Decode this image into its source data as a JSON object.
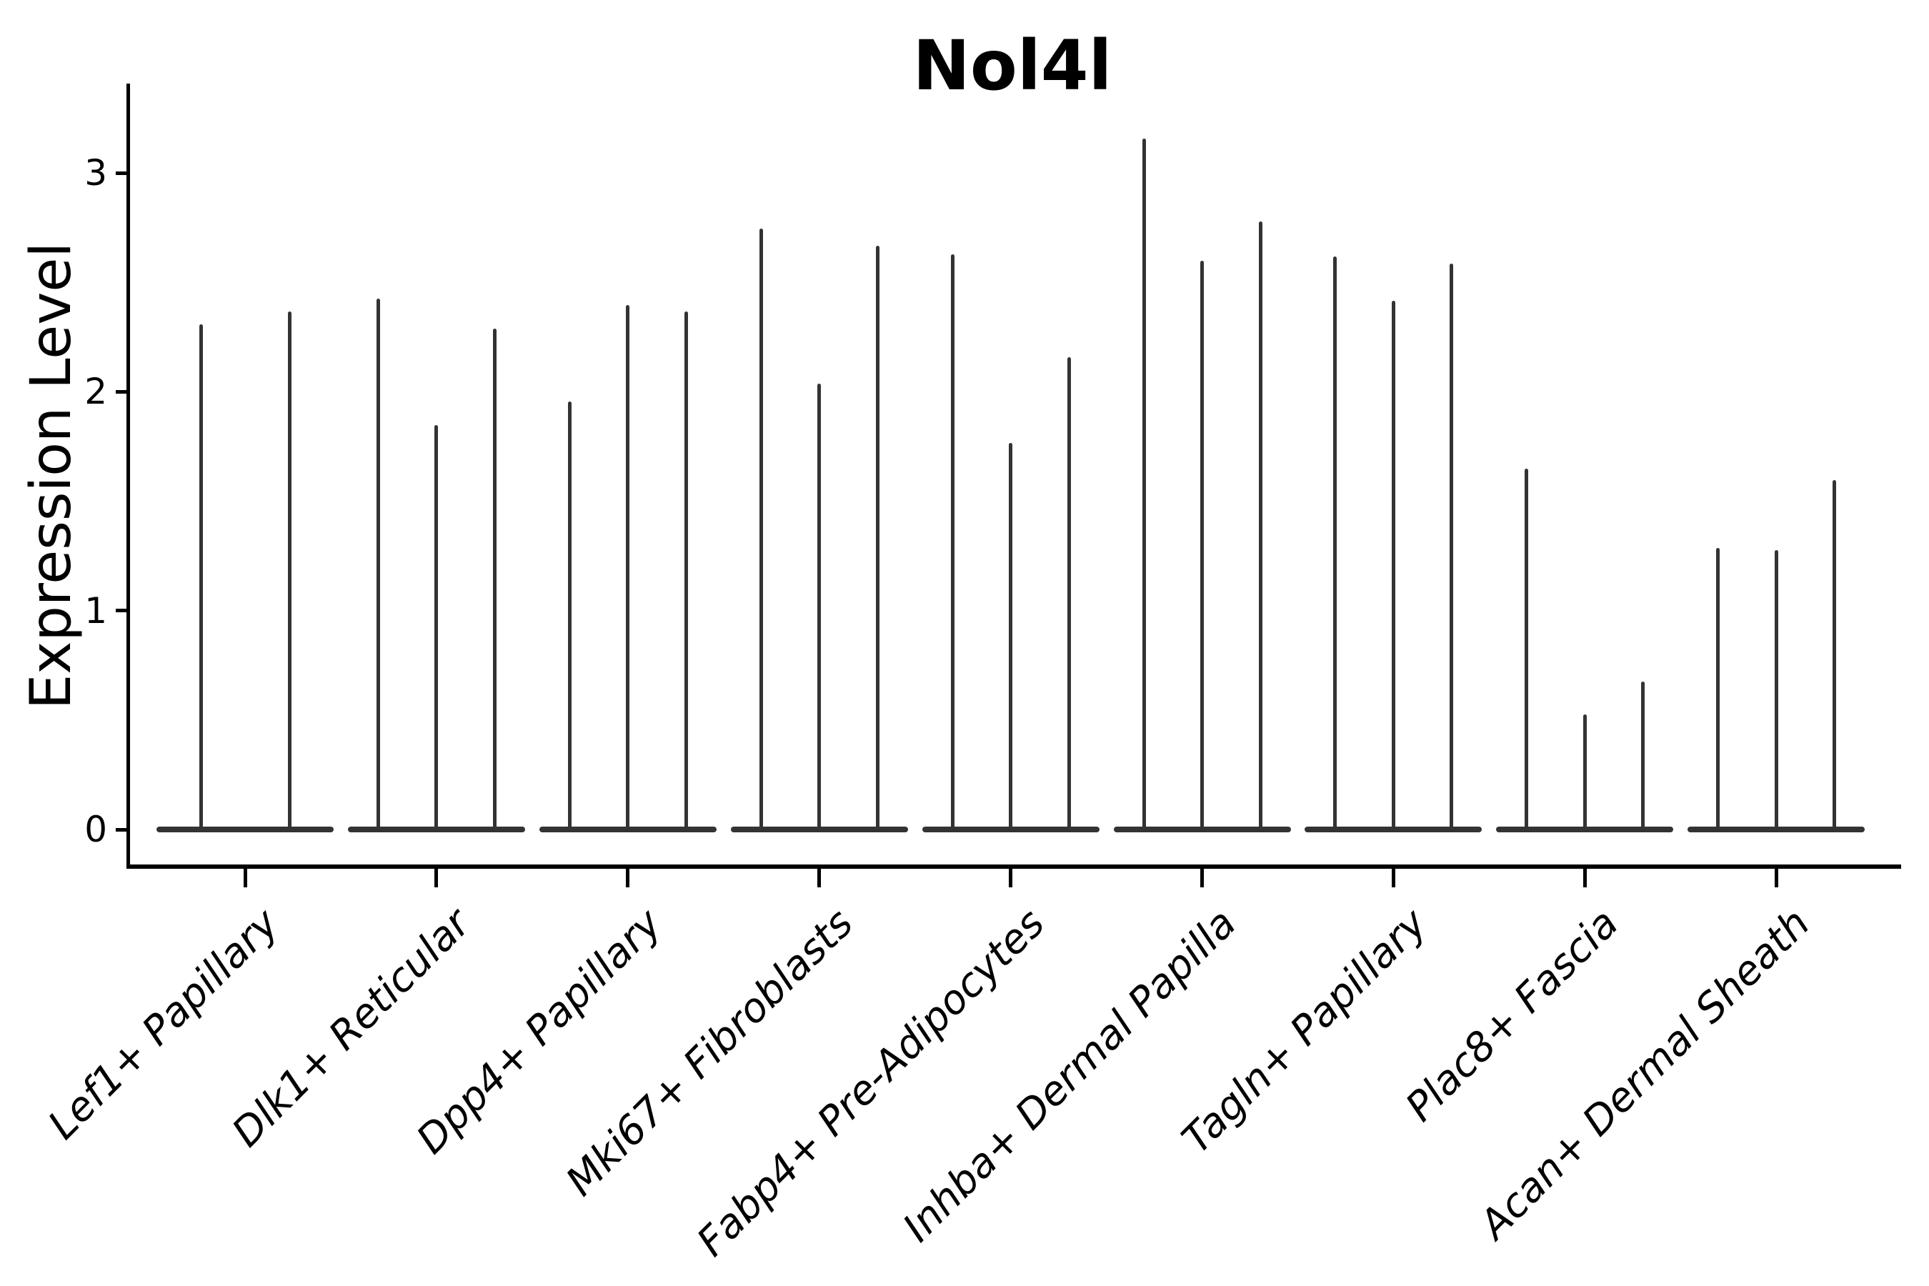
{
  "chart_data": {
    "type": "violin",
    "title": "Nol4l",
    "ylabel": "Expression Level",
    "xlabel": "",
    "yticks": [
      "0",
      "1",
      "2",
      "3"
    ],
    "ylim": [
      -0.16,
      3.41
    ],
    "grid": false,
    "legend": "none",
    "ink_color": "#333333",
    "axis_color": "#000000",
    "groups": [
      {
        "label": "Lef1+ Papillary",
        "violin_max": [
          2.32,
          2.38
        ]
      },
      {
        "label": "Dlk1+ Reticular",
        "violin_max": [
          2.44,
          1.86,
          2.3
        ]
      },
      {
        "label": "Dpp4+ Papillary",
        "violin_max": [
          1.97,
          2.41,
          2.38
        ]
      },
      {
        "label": "Mki67+ Fibroblasts",
        "violin_max": [
          2.76,
          2.05,
          2.68
        ]
      },
      {
        "label": "Fabp4+ Pre-Adipocytes",
        "violin_max": [
          2.64,
          1.78,
          2.17
        ]
      },
      {
        "label": "Inhba+ Dermal Papilla",
        "violin_max": [
          3.17,
          2.61,
          2.79
        ]
      },
      {
        "label": "Tagln+ Papillary",
        "violin_max": [
          2.63,
          2.43,
          2.6
        ]
      },
      {
        "label": "Plac8+ Fascia",
        "violin_max": [
          1.66,
          0.54,
          0.69
        ]
      },
      {
        "label": "Acan+ Dermal Sheath",
        "violin_max": [
          1.3,
          1.29,
          1.61
        ]
      }
    ]
  }
}
